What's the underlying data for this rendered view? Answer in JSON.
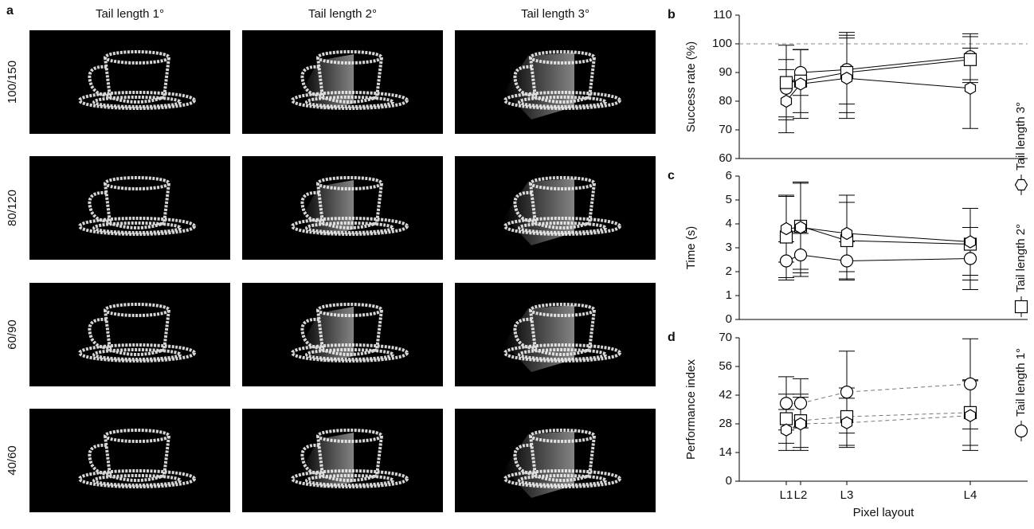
{
  "panel_a": {
    "label": "a",
    "columns": [
      "Tail length 1°",
      "Tail length 2°",
      "Tail length 3°"
    ],
    "rows": [
      "100/150",
      "80/120",
      "60/90",
      "40/60"
    ]
  },
  "chart_data": [
    {
      "type": "line",
      "label": "b",
      "ylabel": "Success rate (%)",
      "ylim": [
        60,
        110
      ],
      "yticks": [
        60,
        70,
        80,
        90,
        100,
        110
      ],
      "reference_line": 100,
      "line_style": "solid",
      "series": [
        {
          "name": "Tail length 1°",
          "marker": "circle",
          "values": [
            84.5,
            90,
            91,
            95.5
          ],
          "errors": [
            10,
            8,
            12,
            8
          ]
        },
        {
          "name": "Tail length 2°",
          "marker": "square",
          "values": [
            86.5,
            87,
            90,
            94.5
          ],
          "errors": [
            13,
            11,
            14,
            8
          ]
        },
        {
          "name": "Tail length 3°",
          "marker": "hexagon",
          "values": [
            80,
            86,
            88,
            84.5
          ],
          "errors": [
            11,
            12,
            14,
            14
          ]
        }
      ]
    },
    {
      "type": "line",
      "label": "c",
      "ylabel": "Time (s)",
      "ylim": [
        0,
        6
      ],
      "yticks": [
        0,
        1,
        2,
        3,
        4,
        5,
        6
      ],
      "line_style": "solid",
      "series": [
        {
          "marker": "circle",
          "values": [
            2.45,
            2.7,
            2.45,
            2.55
          ],
          "errors": [
            0.8,
            0.9,
            0.8,
            1.3
          ]
        },
        {
          "marker": "square",
          "values": [
            3.45,
            3.9,
            3.3,
            3.15
          ],
          "errors": [
            1.7,
            1.8,
            1.6,
            1.5
          ]
        },
        {
          "marker": "hexagon",
          "values": [
            3.8,
            3.85,
            3.6,
            3.25
          ],
          "errors": [
            1.4,
            1.9,
            1.6,
            1.4
          ]
        }
      ]
    },
    {
      "type": "line",
      "label": "d",
      "ylabel": "Performance index",
      "xlabel": "Pixel layout",
      "categories": [
        "L1",
        "L2",
        "L3",
        "L4"
      ],
      "ylim": [
        0,
        70
      ],
      "yticks": [
        0,
        14,
        28,
        42,
        56,
        70
      ],
      "line_style": "dashed",
      "series": [
        {
          "marker": "circle",
          "values": [
            38,
            38,
            43.5,
            47.5
          ],
          "errors": [
            13,
            12,
            20,
            22
          ]
        },
        {
          "marker": "square",
          "values": [
            30.5,
            29.5,
            31.5,
            33.5
          ],
          "errors": [
            12,
            13,
            14,
            16
          ]
        },
        {
          "marker": "hexagon",
          "values": [
            25,
            28,
            28.5,
            32
          ],
          "errors": [
            10,
            13,
            12,
            17
          ]
        }
      ]
    }
  ]
}
